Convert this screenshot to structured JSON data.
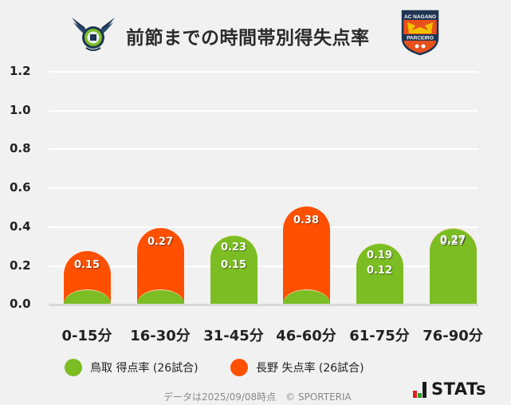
{
  "header": {
    "title": "前節までの時間帯別得失点率",
    "home_logo": "gainare-tottori-crest",
    "away_logo": "ac-nagano-parceiro-crest",
    "away_logo_text_top": "AC NAGANO",
    "away_logo_text_bottom": "PARCEIRO"
  },
  "colors": {
    "home": "#7bbd22",
    "away": "#ff5000",
    "background": "#f1f1f1"
  },
  "chart_data": {
    "type": "bar",
    "title": "前節までの時間帯別得失点率",
    "categories": [
      "0-15分",
      "16-30分",
      "31-45分",
      "46-60分",
      "61-75分",
      "76-90分"
    ],
    "series": [
      {
        "name": "鳥取 得点率 (26試合)",
        "color": "#7bbd22",
        "values": [
          0,
          0,
          0.23,
          0,
          0.19,
          0.27
        ]
      },
      {
        "name": "長野 失点率 (26試合)",
        "color": "#ff5000",
        "values": [
          0.15,
          0.27,
          0.15,
          0.38,
          0.12,
          0.27
        ]
      }
    ],
    "labels": {
      "home": [
        "",
        "",
        "0.23",
        "",
        "0.19",
        "0.27"
      ],
      "away": [
        "0.15",
        "0.27",
        "0.15",
        "0.38",
        "0.12",
        "0.27"
      ]
    },
    "yticks": [
      "0.0",
      "0.2",
      "0.4",
      "0.6",
      "0.8",
      "1.0",
      "1.2"
    ],
    "ylim": [
      0,
      1.2
    ],
    "grid": true,
    "xlabel": "",
    "ylabel": "",
    "legend_position": "bottom"
  },
  "legend": {
    "home": "鳥取 得点率 (26試合)",
    "away": "長野 失点率 (26試合)"
  },
  "footer": {
    "note": "データは2025/09/08時点　© SPORTERIA",
    "brand": "STATs"
  }
}
